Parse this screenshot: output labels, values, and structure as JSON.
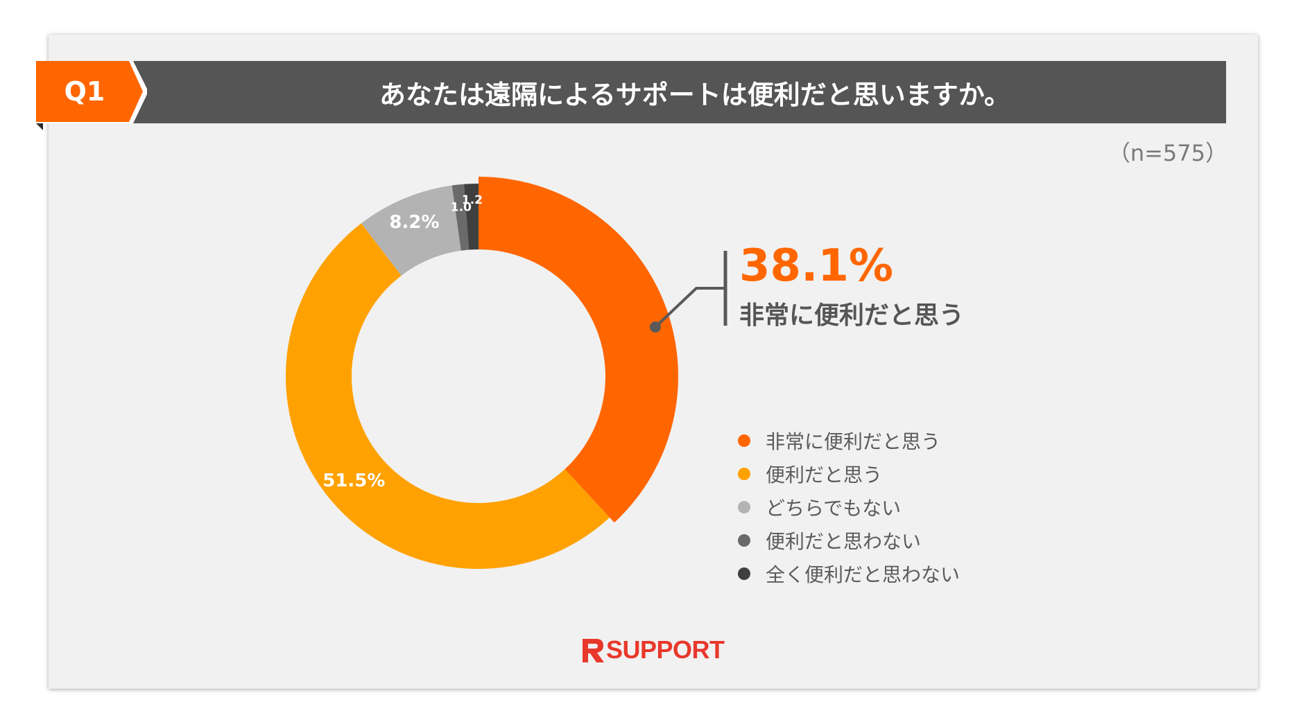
{
  "question": {
    "label": "Q1",
    "title": "あなたは遠隔によるサポートは便利だと思いますか。"
  },
  "sample_size": "（n=575）",
  "callout": {
    "value": "38.1%",
    "label": "非常に便利だと思う"
  },
  "brand": {
    "name": "SUPPORT",
    "mark": "R"
  },
  "colors": {
    "header_bar": "#555555",
    "question_tag": "#ff6600",
    "brand": "#e8382b"
  },
  "chart_data": {
    "type": "pie",
    "variant": "donut",
    "categories": [
      "非常に便利だと思う",
      "便利だと思う",
      "どちらでもない",
      "便利だと思わない",
      "全く便利だと思わない"
    ],
    "values": [
      38.1,
      51.5,
      8.2,
      1.0,
      1.2
    ],
    "data_labels": [
      "38.1%",
      "51.5%",
      "8.2%",
      "1.0",
      "1.2"
    ],
    "colors": [
      "#ff6600",
      "#ffa100",
      "#b3b3b3",
      "#6a6a6a",
      "#3f3f3f"
    ],
    "start": "top",
    "direction": "clockwise",
    "legend_position": "right"
  }
}
